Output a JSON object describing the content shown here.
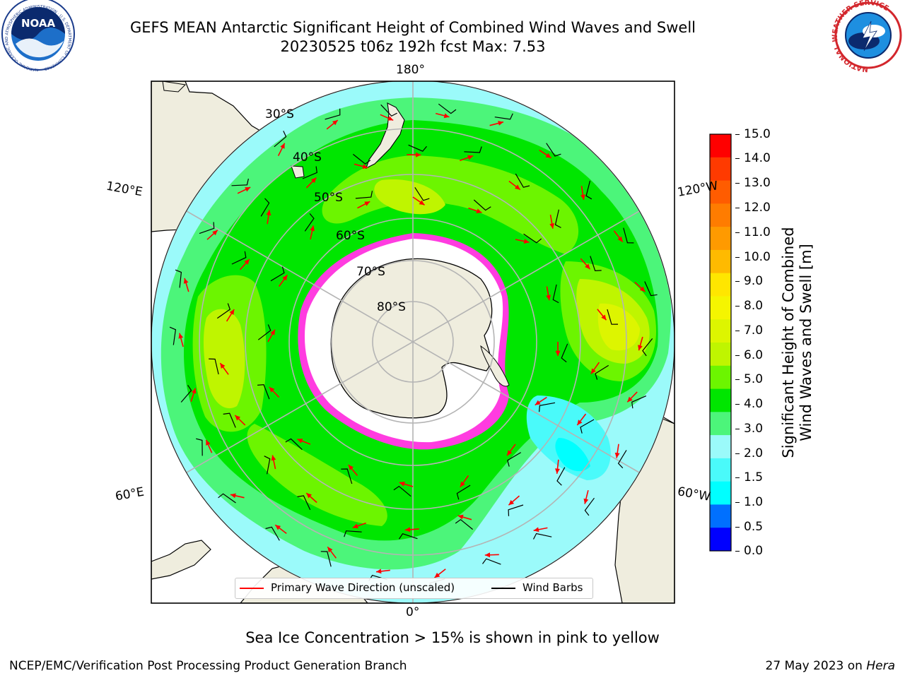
{
  "title_line1": "GEFS MEAN Antarctic Significant Height of Combined Wind Waves and Swell",
  "title_line2": "20230525 t06z 192h fcst   Max: 7.53",
  "longitude_labels": {
    "top": "180°",
    "bottom": "0°",
    "upper_left": "120°E",
    "upper_right": "120°W",
    "lower_left": "60°E",
    "lower_right": "60°W"
  },
  "latitude_labels": [
    "30°S",
    "40°S",
    "50°S",
    "60°S",
    "70°S",
    "80°S"
  ],
  "colorbar": {
    "label_line1": "Significant Height of Combined",
    "label_line2": "Wind Waves and Swell [m]",
    "ticks": [
      "15.0",
      "14.0",
      "13.0",
      "12.0",
      "11.0",
      "10.0",
      "9.0",
      "8.0",
      "7.0",
      "6.0",
      "5.0",
      "4.0",
      "3.0",
      "2.0",
      "1.5",
      "1.0",
      "0.5",
      "0.0"
    ],
    "colors_top_to_bottom": [
      "#ff0000",
      "#ff3a00",
      "#ff5c00",
      "#ff7c00",
      "#ff9a00",
      "#ffba00",
      "#ffe600",
      "#f5f500",
      "#ddf500",
      "#bff500",
      "#6cf500",
      "#00e600",
      "#4cf57a",
      "#9bfafa",
      "#4afafa",
      "#00ffff",
      "#0070ff",
      "#0000ff"
    ]
  },
  "legend": {
    "wave_label": "Primary Wave Direction (unscaled)",
    "wind_label": "Wind Barbs",
    "wave_color": "#ff0000",
    "wind_color": "#000000"
  },
  "sea_ice_note": "Sea Ice Concentration > 15% is shown in pink to yellow",
  "footer_left": "NCEP/EMC/Verification Post Processing Product Generation Branch",
  "footer_date": "27 May 2023 on ",
  "footer_host": "Hera",
  "logos": {
    "noaa_icon": "noaa-logo-icon",
    "nws_icon": "nws-logo-icon",
    "noaa_text": "NOAA",
    "noaa_ring_text": "NATIONAL OCEANIC AND ATMOSPHERIC ADMINISTRATION · U.S. DEPARTMENT OF COMMERCE",
    "nws_ring_text": "NATIONAL WEATHER SERVICE"
  }
}
